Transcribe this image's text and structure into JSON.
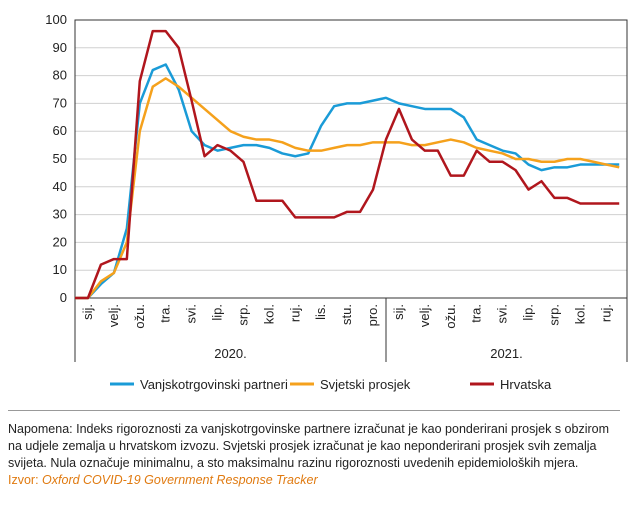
{
  "chart_data": {
    "type": "line",
    "x": [
      0,
      0.5,
      1,
      1.5,
      2,
      2.5,
      3,
      3.5,
      4,
      4.5,
      5,
      5.5,
      6,
      6.5,
      7,
      7.5,
      8,
      8.5,
      9,
      9.5,
      10,
      10.5,
      11,
      11.5,
      12,
      12.5,
      13,
      13.5,
      14,
      14.5,
      15,
      15.5,
      16,
      16.5,
      17,
      17.5,
      18,
      18.5,
      19,
      19.5,
      20,
      20.5,
      21
    ],
    "xlim": [
      0,
      21.3
    ],
    "xticks": [
      {
        "value": 0.5,
        "label": "sij."
      },
      {
        "value": 1.5,
        "label": "velj."
      },
      {
        "value": 2.5,
        "label": "ožu."
      },
      {
        "value": 3.5,
        "label": "tra."
      },
      {
        "value": 4.5,
        "label": "svi."
      },
      {
        "value": 5.5,
        "label": "lip."
      },
      {
        "value": 6.5,
        "label": "srp."
      },
      {
        "value": 7.5,
        "label": "kol."
      },
      {
        "value": 8.5,
        "label": "ruj."
      },
      {
        "value": 9.5,
        "label": "lis."
      },
      {
        "value": 10.5,
        "label": "stu."
      },
      {
        "value": 11.5,
        "label": "pro."
      },
      {
        "value": 12.5,
        "label": "sij."
      },
      {
        "value": 13.5,
        "label": "velj."
      },
      {
        "value": 14.5,
        "label": "ožu."
      },
      {
        "value": 15.5,
        "label": "tra."
      },
      {
        "value": 16.5,
        "label": "svi."
      },
      {
        "value": 17.5,
        "label": "lip."
      },
      {
        "value": 18.5,
        "label": "srp."
      },
      {
        "value": 19.5,
        "label": "kol."
      },
      {
        "value": 20.5,
        "label": "ruj."
      }
    ],
    "year_groups": [
      {
        "label": "2020.",
        "start": 0,
        "end": 12
      },
      {
        "label": "2021.",
        "start": 12,
        "end": 21.3
      }
    ],
    "ylim": [
      0,
      100
    ],
    "yticks": [
      0,
      10,
      20,
      30,
      40,
      50,
      60,
      70,
      80,
      90,
      100
    ],
    "grid": true,
    "series": [
      {
        "name": "Vanjskotrgovinski partneri",
        "color": "#1a9bd7",
        "values": [
          0,
          0,
          5,
          9,
          25,
          70,
          82,
          84,
          75,
          60,
          55,
          53,
          54,
          55,
          55,
          54,
          52,
          51,
          52,
          62,
          69,
          70,
          70,
          71,
          72,
          70,
          69,
          68,
          68,
          68,
          65,
          57,
          55,
          53,
          52,
          48,
          46,
          47,
          47,
          48,
          48,
          48,
          48
        ]
      },
      {
        "name": "Svjetski prosjek",
        "color": "#f5a11c",
        "values": [
          0,
          0,
          6,
          9,
          20,
          60,
          76,
          79,
          76,
          72,
          68,
          64,
          60,
          58,
          57,
          57,
          56,
          54,
          53,
          53,
          54,
          55,
          55,
          56,
          56,
          56,
          55,
          55,
          56,
          57,
          56,
          54,
          53,
          52,
          50,
          50,
          49,
          49,
          50,
          50,
          49,
          48,
          47
        ]
      },
      {
        "name": "Hrvatska",
        "color": "#b0161d",
        "values": [
          0,
          0,
          12,
          14,
          14,
          78,
          96,
          96,
          90,
          71,
          51,
          55,
          53,
          49,
          35,
          35,
          35,
          29,
          29,
          29,
          29,
          31,
          31,
          39,
          57,
          68,
          57,
          53,
          53,
          44,
          44,
          53,
          49,
          49,
          46,
          39,
          42,
          36,
          36,
          34,
          34,
          34,
          34
        ]
      }
    ]
  },
  "note": "Napomena: Indeks rigoroznosti za vanjskotrgovinske partnere izračunat je kao ponderirani prosjek s obzirom na udjele zemalja u hrvatskom izvozu. Svjetski prosjek izračunat je kao neponderirani prosjek svih zemalja svijeta. Nula označuje minimalnu, a sto maksimalnu razinu rigoroznosti uvedenih epidemioloških mjera.",
  "source_label": "Izvor:",
  "source": "Oxford COVID-19 Government Response Tracker"
}
